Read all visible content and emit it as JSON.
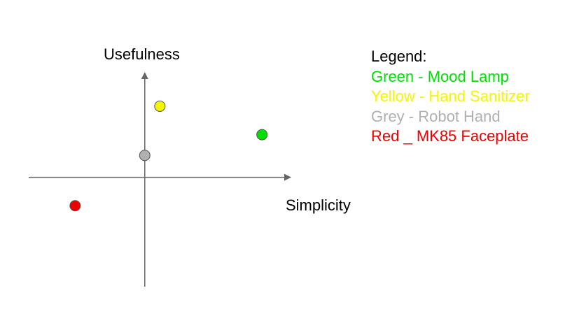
{
  "chart_data": {
    "type": "scatter",
    "title": "",
    "xlabel": "Simplicity",
    "ylabel": "Usefulness",
    "xlim": [
      -10,
      12.5
    ],
    "ylim": [
      -10,
      9.5
    ],
    "grid": false,
    "legend_title": "Legend:",
    "legend_position": "right",
    "series": [
      {
        "name": "Green - Mood Lamp",
        "color": "#00e000",
        "x": 10.1,
        "y": 3.9
      },
      {
        "name": "Yellow - Hand Sanitizer",
        "color": "#f5f500",
        "x": 1.3,
        "y": 6.5
      },
      {
        "name": "Grey - Robot Hand",
        "color": "#b0b0b0",
        "x": 0,
        "y": 2
      },
      {
        "name": "Red _ MK85 Faceplate",
        "color": "#ee0000",
        "x": -6,
        "y": -2.6
      }
    ]
  }
}
